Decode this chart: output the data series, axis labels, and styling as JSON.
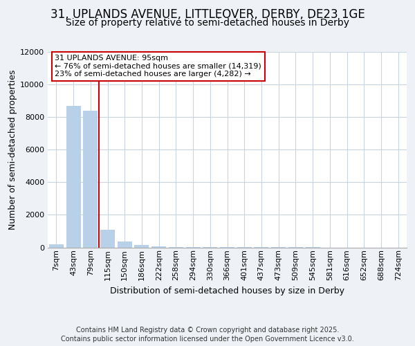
{
  "title1": "31, UPLANDS AVENUE, LITTLEOVER, DERBY, DE23 1GE",
  "title2": "Size of property relative to semi-detached houses in Derby",
  "xlabel": "Distribution of semi-detached houses by size in Derby",
  "ylabel": "Number of semi-detached properties",
  "categories": [
    "7sqm",
    "43sqm",
    "79sqm",
    "115sqm",
    "150sqm",
    "186sqm",
    "222sqm",
    "258sqm",
    "294sqm",
    "330sqm",
    "366sqm",
    "401sqm",
    "437sqm",
    "473sqm",
    "509sqm",
    "545sqm",
    "581sqm",
    "616sqm",
    "652sqm",
    "688sqm",
    "724sqm"
  ],
  "values": [
    200,
    8700,
    8400,
    1100,
    350,
    150,
    80,
    30,
    10,
    5,
    3,
    2,
    1,
    1,
    1,
    1,
    0,
    0,
    0,
    0,
    0
  ],
  "bar_color": "#b8d0e8",
  "vline_color": "#cc0000",
  "vline_pos": 2.5,
  "ylim": [
    0,
    12000
  ],
  "yticks": [
    0,
    2000,
    4000,
    6000,
    8000,
    10000,
    12000
  ],
  "annotation_title": "31 UPLANDS AVENUE: 95sqm",
  "annotation_line1": "← 76% of semi-detached houses are smaller (14,319)",
  "annotation_line2": "23% of semi-detached houses are larger (4,282) →",
  "annotation_box_color": "#cc0000",
  "footer1": "Contains HM Land Registry data © Crown copyright and database right 2025.",
  "footer2": "Contains public sector information licensed under the Open Government Licence v3.0.",
  "bg_color": "#eef2f7",
  "plot_bg_color": "#ffffff",
  "grid_color": "#c8d4e0",
  "title1_fontsize": 12,
  "title2_fontsize": 10,
  "axis_label_fontsize": 9,
  "tick_fontsize": 8,
  "footer_fontsize": 7,
  "annot_fontsize": 8
}
